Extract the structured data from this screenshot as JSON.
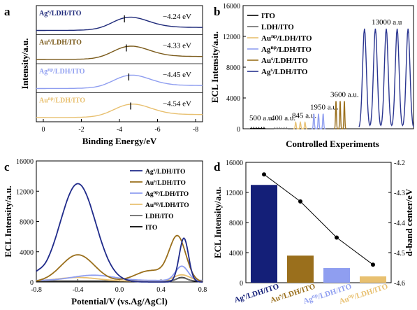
{
  "chart_data": [
    {
      "panel": "a",
      "type": "line",
      "xlabel": "Binding Energy/eV",
      "ylabel": "Intensity/a.u.",
      "xlim": [
        0,
        -8
      ],
      "x_ticks": [
        "0",
        "-2",
        "-4",
        "-6",
        "-8"
      ],
      "series": [
        {
          "name": "Ag^s/LDH/ITO",
          "label_main": "Ag",
          "label_sup": "s",
          "label_rest": "/LDH/ITO",
          "d_band_center": "−4.24 eV",
          "color": "#1f2a7a"
        },
        {
          "name": "Au^s/LDH/ITO",
          "label_main": "Au",
          "label_sup": "s",
          "label_rest": "/LDH/ITO",
          "d_band_center": "−4.33 eV",
          "color": "#7a5a1a"
        },
        {
          "name": "Ag^np/LDH/ITO",
          "label_main": "Ag",
          "label_sup": "np",
          "label_rest": "/LDH/ITO",
          "d_band_center": "−4.45 eV",
          "color": "#8f9ef0"
        },
        {
          "name": "Au^np/LDH/ITO",
          "label_main": "Au",
          "label_sup": "np",
          "label_rest": "/LDH/ITO",
          "d_band_center": "−4.54 eV",
          "color": "#e8c070"
        }
      ]
    },
    {
      "panel": "b",
      "type": "line",
      "xlabel": "Controlled Experiments",
      "ylabel": "ECL Intensity/a.u.",
      "ylim": [
        0,
        16000
      ],
      "y_ticks": [
        0,
        4000,
        8000,
        12000,
        16000
      ],
      "legend": [
        "ITO",
        "LDH/ITO",
        "Au^np/LDH/ITO",
        "Ag^np/LDH/ITO",
        "Au^s/LDH/ITO",
        "Ag^s/LDH/ITO"
      ],
      "legend_parts": [
        {
          "main": "ITO",
          "sup": "",
          "rest": ""
        },
        {
          "main": "LDH/ITO",
          "sup": "",
          "rest": ""
        },
        {
          "main": "Au",
          "sup": "np",
          "rest": "/LDH/ITO"
        },
        {
          "main": "Ag",
          "sup": "np",
          "rest": "/LDH/ITO"
        },
        {
          "main": "Au",
          "sup": "s",
          "rest": "/LDH/ITO"
        },
        {
          "main": "Ag",
          "sup": "s",
          "rest": "/LDH/ITO"
        }
      ],
      "colors": [
        "#000000",
        "#6a6a6a",
        "#e8c070",
        "#8f9ef0",
        "#9a6f1c",
        "#2a3590"
      ],
      "values": [
        500,
        400,
        845,
        1950,
        3600,
        13000
      ],
      "annotations": [
        "500 a.u.",
        "400 a.u.",
        "845 a.u.",
        "1950 a.u.",
        "3600 a.u.",
        "13000 a.u"
      ]
    },
    {
      "panel": "c",
      "type": "line",
      "xlabel": "Potential/V (vs.Ag/AgCl)",
      "ylabel": "ECL Intensity/a.u.",
      "xlim": [
        -0.8,
        0.8
      ],
      "ylim": [
        0,
        16000
      ],
      "x_ticks": [
        "-0.8",
        "-0.4",
        "0.0",
        "0.4",
        "0.8"
      ],
      "y_ticks": [
        0,
        4000,
        8000,
        12000,
        16000
      ],
      "legend_parts": [
        {
          "main": "Ag",
          "sup": "s",
          "rest": "/LDH/ITO"
        },
        {
          "main": "Au",
          "sup": "s",
          "rest": "/LDH/ITO"
        },
        {
          "main": "Ag",
          "sup": "np",
          "rest": "/LDH/ITO"
        },
        {
          "main": "Au",
          "sup": "np",
          "rest": "/LDH/ITO"
        },
        {
          "main": "LDH/ITO",
          "sup": "",
          "rest": ""
        },
        {
          "main": "ITO",
          "sup": "",
          "rest": ""
        }
      ],
      "series": [
        {
          "name": "Ag^s/LDH/ITO",
          "color": "#1f2a8a",
          "peak_x": -0.4,
          "peak_y": 13000,
          "peak2_x": 0.6,
          "peak2_y": 5800
        },
        {
          "name": "Au^s/LDH/ITO",
          "color": "#9a6f1c",
          "peak_x": -0.4,
          "peak_y": 3600,
          "peak2_x": 0.55,
          "peak2_y": 5800
        },
        {
          "name": "Ag^np/LDH/ITO",
          "color": "#8f9ef0",
          "peak_x": -0.25,
          "peak_y": 700,
          "peak2_x": 0.6,
          "peak2_y": 1900
        },
        {
          "name": "Au^np/LDH/ITO",
          "color": "#e8c070",
          "peak_x": -0.4,
          "peak_y": 500,
          "peak2_x": 0.6,
          "peak2_y": 850
        },
        {
          "name": "LDH/ITO",
          "color": "#6a6a6a",
          "peak_x": 0.6,
          "peak_y": 400
        },
        {
          "name": "ITO",
          "color": "#000000",
          "peak_x": 0.6,
          "peak_y": 500
        }
      ]
    },
    {
      "panel": "d",
      "type": "bar",
      "ylabel": "ECL Intensity/a.u.",
      "y2label": "d-band center/eV",
      "ylim": [
        0,
        16000
      ],
      "y2lim": [
        -4.6,
        -4.2
      ],
      "y_ticks": [
        0,
        4000,
        8000,
        12000,
        16000
      ],
      "y2_ticks": [
        "-4.2",
        "-4.3",
        "-4.4",
        "-4.5",
        "-4.6"
      ],
      "category_parts": [
        {
          "main": "Ag",
          "sup": "s",
          "rest": "/LDH/ITO"
        },
        {
          "main": "Au",
          "sup": "s",
          "rest": "/LDH/ITO"
        },
        {
          "main": "Ag",
          "sup": "np",
          "rest": "/LDH/ITO"
        },
        {
          "main": "Au",
          "sup": "np",
          "rest": "/LDH/ITO"
        }
      ],
      "categories": [
        "Ag^s/LDH/ITO",
        "Au^s/LDH/ITO",
        "Ag^np/LDH/ITO",
        "Au^np/LDH/ITO"
      ],
      "colors": [
        "#141f78",
        "#9a6f1c",
        "#8f9ef0",
        "#e8c070"
      ],
      "values": [
        13000,
        3600,
        1950,
        845
      ],
      "d_band": [
        -4.24,
        -4.33,
        -4.45,
        -4.54
      ]
    }
  ],
  "panel_labels": [
    "a",
    "b",
    "c",
    "d"
  ]
}
